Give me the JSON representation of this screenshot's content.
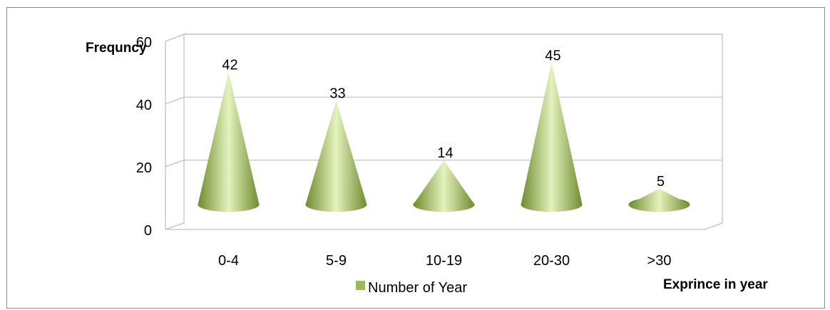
{
  "chart_data": {
    "type": "bar",
    "bar_shape": "3d-cone",
    "categories": [
      "0-4",
      "5-9",
      "10-19",
      "20-30",
      ">30"
    ],
    "series": [
      {
        "name": "Number of Year",
        "values": [
          42,
          33,
          14,
          45,
          5
        ]
      }
    ],
    "data_labels": [
      "42",
      "33",
      "14",
      "45",
      "5"
    ],
    "ylabel": "Frequncy",
    "xlabel": "Exprince in year",
    "ylim": [
      0,
      60
    ],
    "yticks": [
      "0",
      "20",
      "40",
      "60"
    ],
    "grid": true,
    "legend": "bottom",
    "colors": {
      "cone": "#9bbb59",
      "cone_light": "#e4f2bd",
      "cone_dark": "#6e8c2e",
      "grid": "#bfbfbf"
    }
  }
}
